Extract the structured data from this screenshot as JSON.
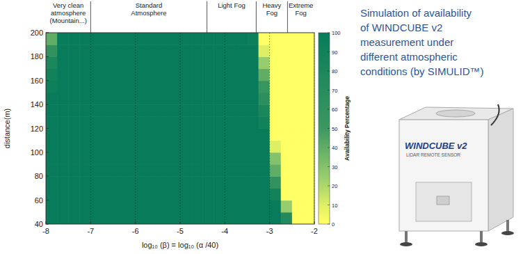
{
  "chart_data": {
    "type": "heatmap",
    "title": [
      "Simulation of availability",
      "of WINDCUBE v2",
      "measurement under",
      "different atmospheric",
      "conditions  (by SIMULID™)"
    ],
    "xlabel": "log₁₀ (β) = log₁₀ (α /40)",
    "ylabel": "distance(m)",
    "xlim": [
      -8,
      -2
    ],
    "xticks": [
      -8,
      -7,
      -6,
      -5,
      -4,
      -3,
      -2
    ],
    "ylim": [
      40,
      200
    ],
    "yticks": [
      40,
      60,
      80,
      100,
      120,
      140,
      160,
      180,
      200
    ],
    "grid": true,
    "x": [
      -7.875,
      -7.625,
      -7.375,
      -7.125,
      -6.875,
      -6.625,
      -6.375,
      -6.125,
      -5.875,
      -5.625,
      -5.375,
      -5.125,
      -4.875,
      -4.625,
      -4.375,
      -4.125,
      -3.875,
      -3.625,
      -3.375,
      -3.125,
      -2.875,
      -2.625,
      -2.375,
      -2.125
    ],
    "y": [
      45,
      55,
      65,
      75,
      85,
      95,
      105,
      115,
      125,
      135,
      145,
      155,
      165,
      175,
      185,
      195
    ],
    "values": [
      [
        100,
        100,
        100,
        100,
        100,
        100,
        100,
        100,
        100,
        100,
        100,
        100,
        100,
        100,
        100,
        100,
        100,
        100,
        100,
        100,
        100,
        75,
        0,
        0
      ],
      [
        100,
        100,
        100,
        100,
        100,
        100,
        100,
        100,
        100,
        100,
        100,
        100,
        100,
        100,
        100,
        100,
        100,
        100,
        100,
        100,
        100,
        25,
        0,
        0
      ],
      [
        100,
        100,
        100,
        100,
        100,
        100,
        100,
        100,
        100,
        100,
        100,
        100,
        100,
        100,
        100,
        100,
        100,
        100,
        100,
        100,
        90,
        0,
        0,
        0
      ],
      [
        100,
        100,
        100,
        100,
        100,
        100,
        100,
        100,
        100,
        100,
        100,
        100,
        100,
        100,
        100,
        100,
        100,
        100,
        100,
        100,
        60,
        0,
        0,
        0
      ],
      [
        100,
        100,
        100,
        100,
        100,
        100,
        100,
        100,
        100,
        100,
        100,
        100,
        100,
        100,
        100,
        100,
        100,
        100,
        100,
        100,
        40,
        0,
        0,
        0
      ],
      [
        100,
        100,
        100,
        100,
        100,
        100,
        100,
        100,
        100,
        100,
        100,
        100,
        100,
        100,
        100,
        100,
        100,
        100,
        100,
        100,
        30,
        0,
        0,
        0
      ],
      [
        100,
        100,
        100,
        100,
        100,
        100,
        100,
        100,
        100,
        100,
        100,
        100,
        100,
        100,
        100,
        100,
        100,
        100,
        100,
        100,
        10,
        0,
        0,
        0
      ],
      [
        100,
        100,
        100,
        100,
        100,
        100,
        100,
        100,
        100,
        100,
        100,
        100,
        100,
        100,
        100,
        100,
        100,
        100,
        100,
        100,
        0,
        0,
        0,
        0
      ],
      [
        100,
        100,
        100,
        100,
        100,
        100,
        100,
        100,
        100,
        100,
        100,
        100,
        100,
        100,
        100,
        100,
        100,
        100,
        100,
        90,
        0,
        0,
        0,
        0
      ],
      [
        100,
        100,
        100,
        100,
        100,
        100,
        100,
        100,
        100,
        100,
        100,
        100,
        100,
        100,
        100,
        100,
        100,
        100,
        100,
        80,
        0,
        0,
        0,
        0
      ],
      [
        100,
        100,
        100,
        100,
        100,
        100,
        100,
        100,
        100,
        100,
        100,
        100,
        100,
        100,
        100,
        100,
        100,
        100,
        100,
        65,
        0,
        0,
        0,
        0
      ],
      [
        95,
        100,
        100,
        100,
        100,
        100,
        100,
        100,
        100,
        100,
        100,
        100,
        100,
        100,
        100,
        100,
        100,
        100,
        100,
        55,
        0,
        0,
        0,
        0
      ],
      [
        90,
        100,
        100,
        100,
        100,
        100,
        100,
        100,
        100,
        100,
        100,
        100,
        100,
        100,
        100,
        100,
        100,
        100,
        100,
        40,
        0,
        0,
        0,
        0
      ],
      [
        80,
        100,
        100,
        100,
        100,
        100,
        100,
        100,
        100,
        100,
        100,
        100,
        100,
        100,
        100,
        100,
        100,
        100,
        100,
        25,
        0,
        0,
        0,
        0
      ],
      [
        60,
        100,
        100,
        100,
        100,
        100,
        100,
        100,
        100,
        100,
        100,
        100,
        100,
        100,
        100,
        100,
        100,
        100,
        100,
        10,
        0,
        0,
        0,
        0
      ],
      [
        40,
        100,
        100,
        100,
        100,
        100,
        100,
        100,
        100,
        100,
        100,
        100,
        100,
        100,
        100,
        100,
        100,
        100,
        95,
        0,
        0,
        0,
        0,
        0
      ]
    ],
    "colorbar_label": "Availability Percentage",
    "colorbar_range": [
      0,
      100
    ],
    "colorbar_ticks": [
      0,
      10,
      20,
      30,
      40,
      50,
      60,
      70,
      80,
      90,
      100
    ],
    "regions": [
      {
        "label": [
          "Very clean",
          "atmosphere",
          "(Mountain...)"
        ],
        "from": -8,
        "to": -7
      },
      {
        "label": [
          "Standard",
          "Atmosphere"
        ],
        "from": -7,
        "to": -4.4
      },
      {
        "label": [
          "Light Fog"
        ],
        "from": -4.4,
        "to": -3.3
      },
      {
        "label": [
          "Heavy",
          "Fog"
        ],
        "from": -3.3,
        "to": -2.6
      },
      {
        "label": [
          "Extreme",
          "Fog"
        ],
        "from": -2.6,
        "to": -2
      }
    ],
    "annotations": [
      "WINDCUBE v2",
      "LIDAR REMOTE SENSOR"
    ]
  }
}
